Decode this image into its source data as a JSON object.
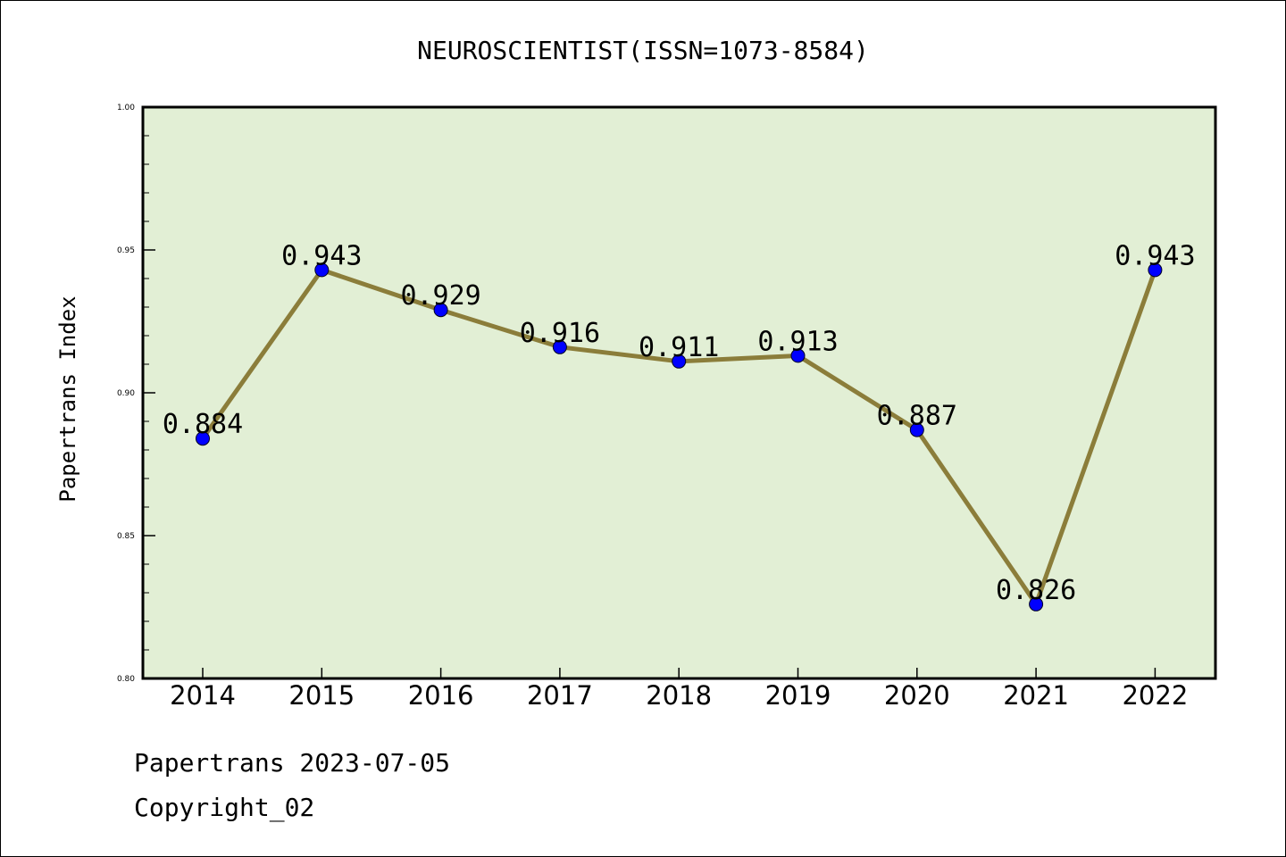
{
  "chart_data": {
    "type": "line",
    "title": "NEUROSCIENTIST(ISSN=1073-8584)",
    "xlabel": "",
    "ylabel": "Papertrans Index",
    "categories": [
      "2014",
      "2015",
      "2016",
      "2017",
      "2018",
      "2019",
      "2020",
      "2021",
      "2022"
    ],
    "series": [
      {
        "values": [
          0.884,
          0.943,
          0.929,
          0.916,
          0.911,
          0.913,
          0.887,
          0.826,
          0.943
        ],
        "labels": [
          "0.884",
          "0.943",
          "0.929",
          "0.916",
          "0.911",
          "0.913",
          "0.887",
          "0.826",
          "0.943"
        ]
      }
    ],
    "ylim": [
      0.8,
      1.0
    ],
    "yticks": [
      "0.80",
      "0.85",
      "0.90",
      "0.95",
      "1.00"
    ],
    "grid": false,
    "colors": {
      "line": "#8b7d3a",
      "marker": "#0000ff",
      "plot_bg": "#e2efd5"
    }
  },
  "footer": {
    "line1": "Papertrans 2023-07-05",
    "line2": "Copyright_02"
  }
}
